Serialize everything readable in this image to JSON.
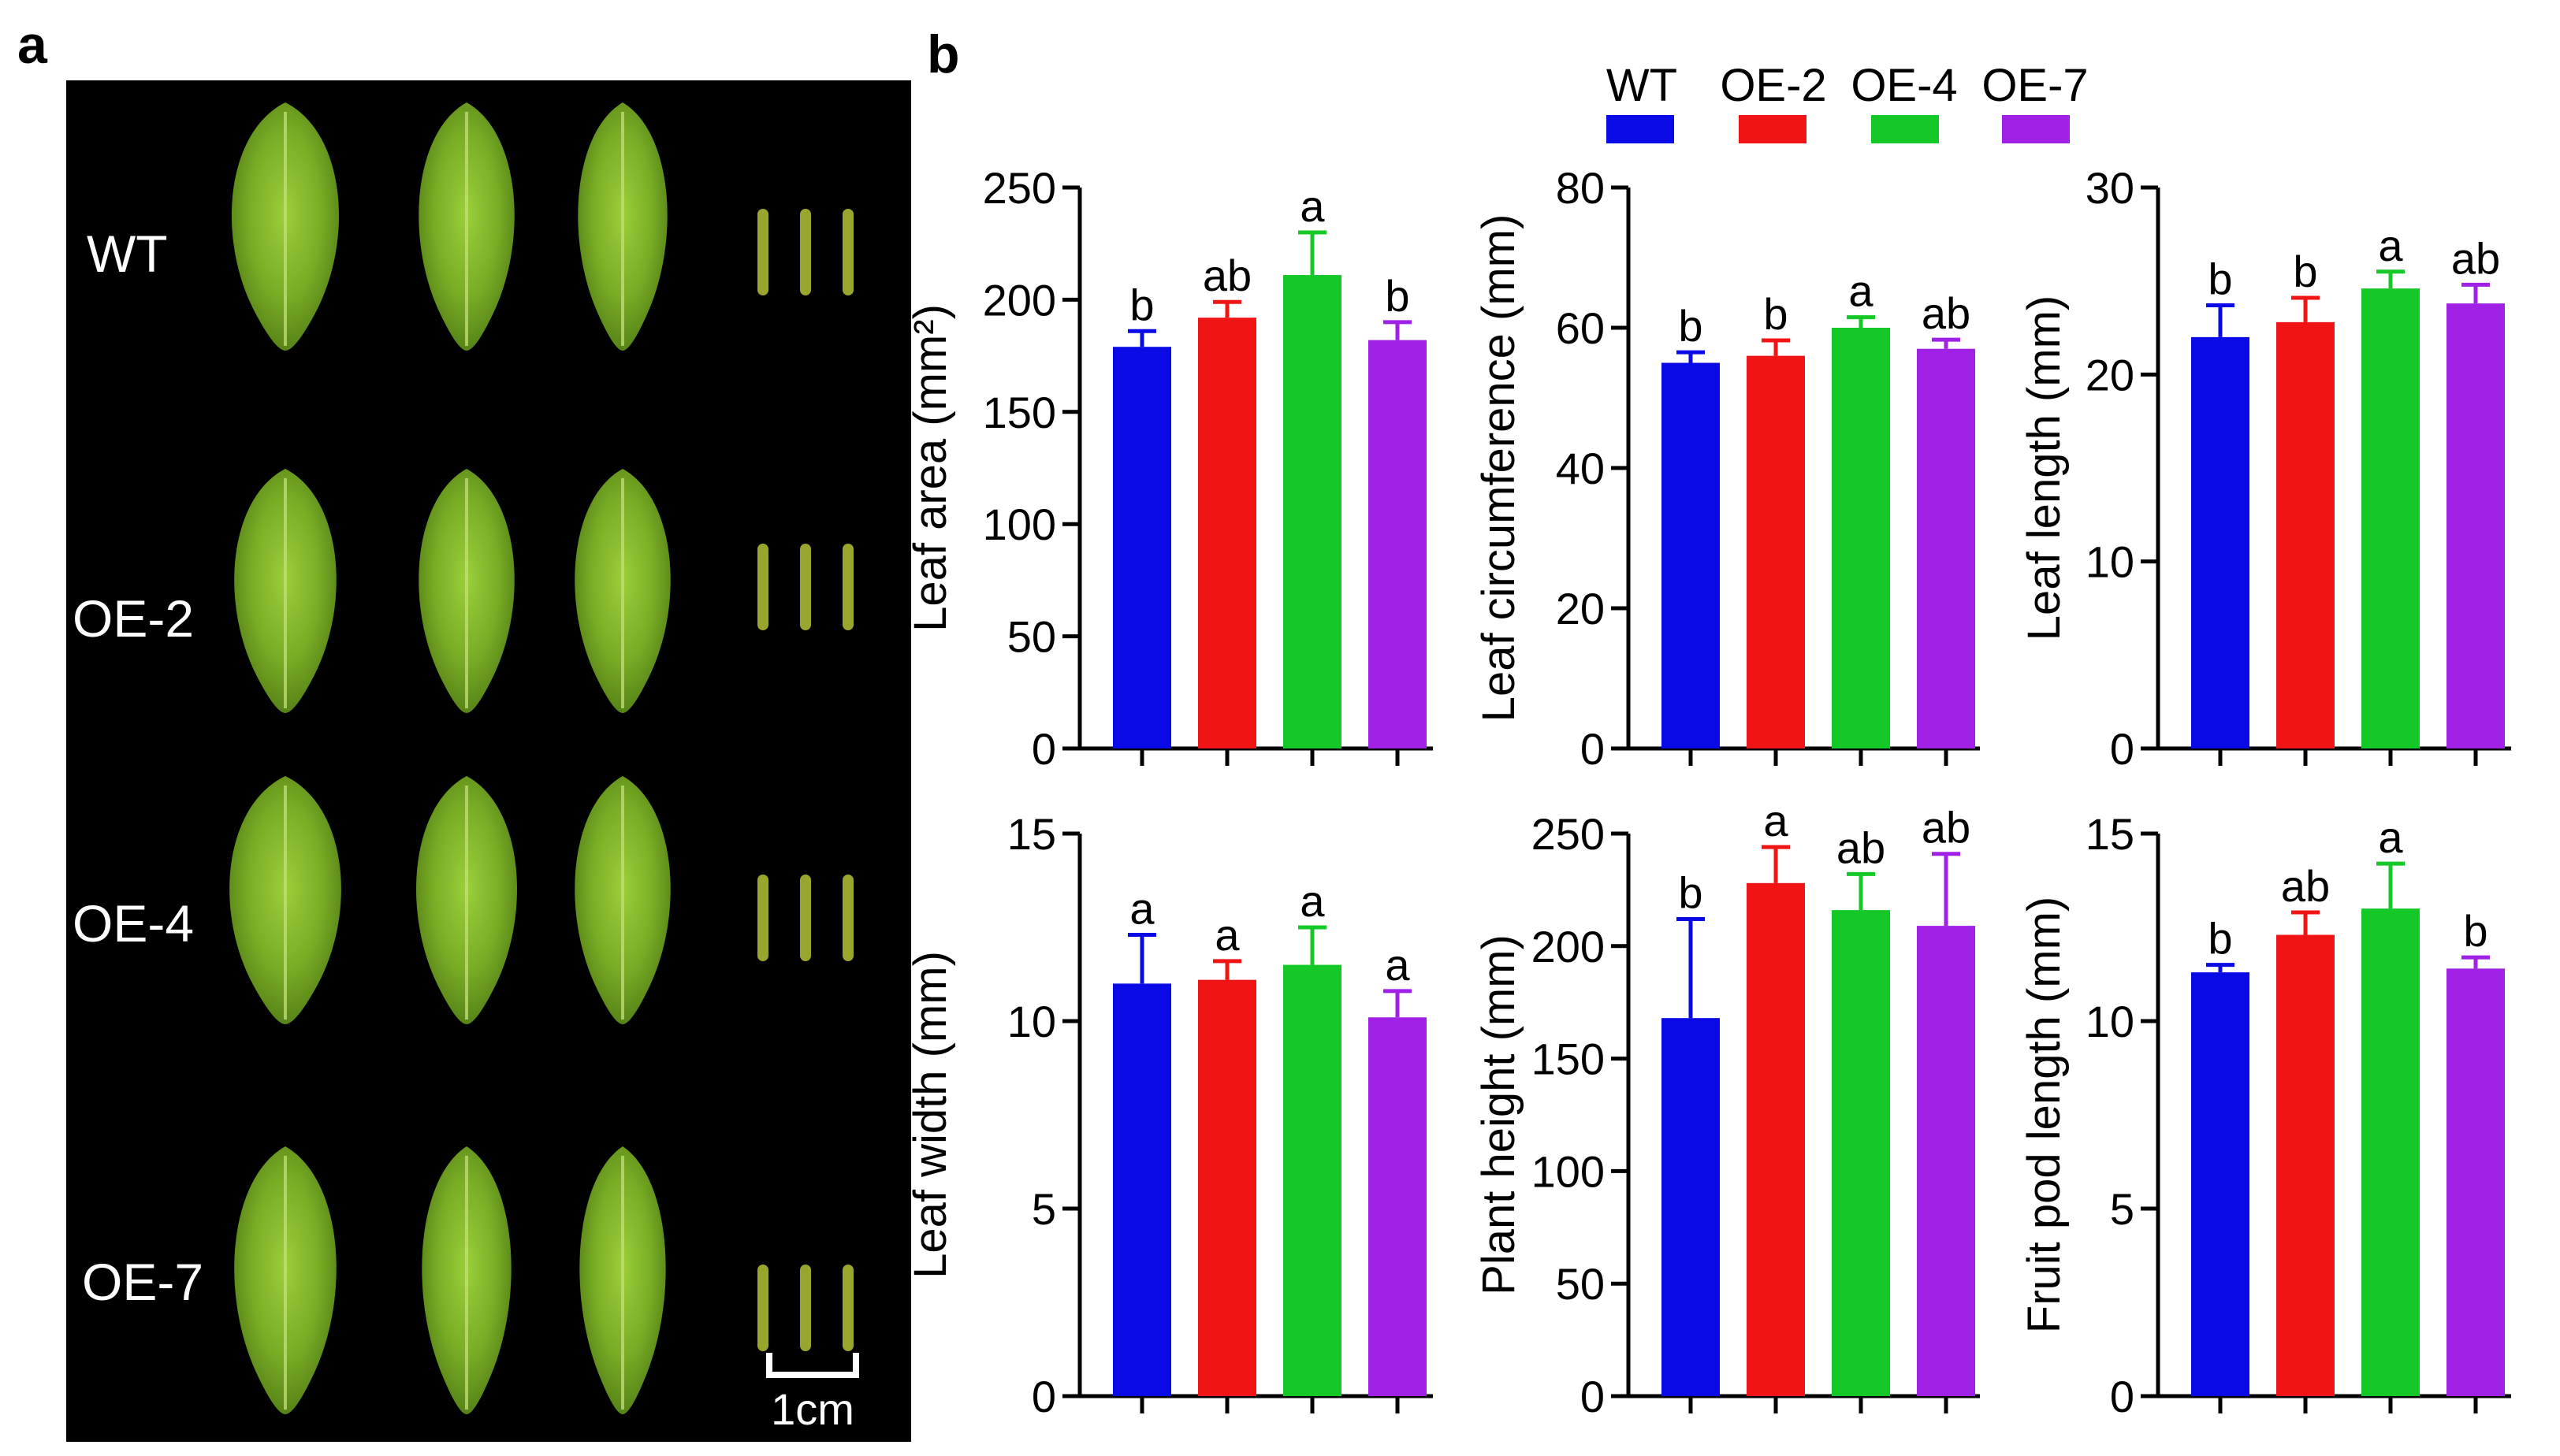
{
  "panel_a": {
    "label": "a",
    "row_labels": [
      "WT",
      "OE-2",
      "OE-4",
      "OE-7"
    ],
    "scale_bar_label": "1cm"
  },
  "panel_b": {
    "label": "b"
  },
  "legend": [
    {
      "name": "WT",
      "color": "#0a0ae6"
    },
    {
      "name": "OE-2",
      "color": "#f01414"
    },
    {
      "name": "OE-4",
      "color": "#14c828"
    },
    {
      "name": "OE-7",
      "color": "#a020e6"
    }
  ],
  "chart_data": [
    {
      "type": "bar",
      "ylabel": "Leaf area (mm²)",
      "categories": [
        "WT",
        "OE-2",
        "OE-4",
        "OE-7"
      ],
      "values": [
        179,
        192,
        211,
        182
      ],
      "errors": [
        7,
        7,
        19,
        8
      ],
      "letters": [
        "b",
        "ab",
        "a",
        "b"
      ],
      "ylim": [
        0,
        250
      ],
      "yticks": [
        0,
        50,
        100,
        150,
        200,
        250
      ]
    },
    {
      "type": "bar",
      "ylabel": "Leaf circumference (mm)",
      "categories": [
        "WT",
        "OE-2",
        "OE-4",
        "OE-7"
      ],
      "values": [
        55,
        56,
        60,
        57
      ],
      "errors": [
        1.5,
        2.2,
        1.5,
        1.3
      ],
      "letters": [
        "b",
        "b",
        "a",
        "ab"
      ],
      "ylim": [
        0,
        80
      ],
      "yticks": [
        0,
        20,
        40,
        60,
        80
      ]
    },
    {
      "type": "bar",
      "ylabel": "Leaf  length (mm)",
      "categories": [
        "WT",
        "OE-2",
        "OE-4",
        "OE-7"
      ],
      "values": [
        22,
        22.8,
        24.6,
        23.8
      ],
      "errors": [
        1.7,
        1.3,
        0.9,
        1.0
      ],
      "letters": [
        "b",
        "b",
        "a",
        "ab"
      ],
      "ylim": [
        0,
        30
      ],
      "yticks": [
        0,
        10,
        20,
        30
      ]
    },
    {
      "type": "bar",
      "ylabel": "Leaf width (mm)",
      "categories": [
        "WT",
        "OE-2",
        "OE-4",
        "OE-7"
      ],
      "values": [
        11,
        11.1,
        11.5,
        10.1
      ],
      "errors": [
        1.3,
        0.5,
        1.0,
        0.7
      ],
      "letters": [
        "a",
        "a",
        "a",
        "a"
      ],
      "ylim": [
        0,
        15
      ],
      "yticks": [
        0,
        5,
        10,
        15
      ]
    },
    {
      "type": "bar",
      "ylabel": "Plant height (mm)",
      "categories": [
        "WT",
        "OE-2",
        "OE-4",
        "OE-7"
      ],
      "values": [
        168,
        228,
        216,
        209
      ],
      "errors": [
        44,
        16,
        16,
        32
      ],
      "letters": [
        "b",
        "a",
        "ab",
        "ab"
      ],
      "ylim": [
        0,
        250
      ],
      "yticks": [
        0,
        50,
        100,
        150,
        200,
        250
      ]
    },
    {
      "type": "bar",
      "ylabel": "Fruit pod length (mm)",
      "categories": [
        "WT",
        "OE-2",
        "OE-4",
        "OE-7"
      ],
      "values": [
        11.3,
        12.3,
        13,
        11.4
      ],
      "errors": [
        0.2,
        0.6,
        1.2,
        0.3
      ],
      "letters": [
        "b",
        "ab",
        "a",
        "b"
      ],
      "ylim": [
        0,
        15
      ],
      "yticks": [
        0,
        5,
        10,
        15
      ]
    }
  ]
}
